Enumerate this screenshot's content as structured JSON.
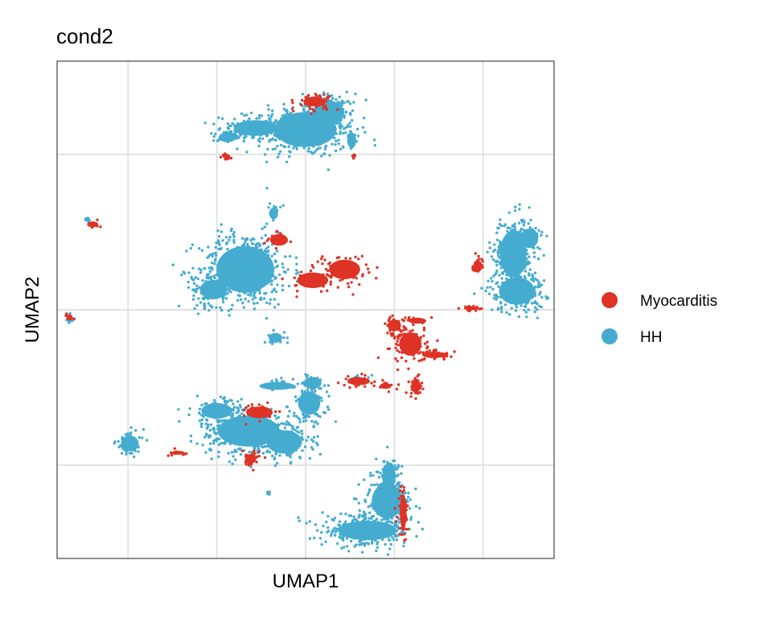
{
  "chart_data": {
    "type": "scatter",
    "title": "cond2",
    "xlabel": "UMAP1",
    "ylabel": "UMAP2",
    "xlim": [
      -15,
      13
    ],
    "ylim": [
      -16,
      16
    ],
    "x_gridlines": [
      -11,
      -6,
      -1,
      4,
      9
    ],
    "y_gridlines": [
      -10,
      0,
      10
    ],
    "tick_labels_shown": false,
    "grid": true,
    "legend_position": "right",
    "series": [
      {
        "name": "Myocarditis",
        "color": "#de3325",
        "clusters": [
          {
            "x": -0.5,
            "y": 13.4,
            "sx": 0.5,
            "sy": 0.25,
            "n": 60
          },
          {
            "x": -5.5,
            "y": 9.9,
            "sx": 0.15,
            "sy": 0.12,
            "n": 14
          },
          {
            "x": 1.7,
            "y": 9.9,
            "sx": 0.08,
            "sy": 0.1,
            "n": 8
          },
          {
            "x": -13.0,
            "y": 5.5,
            "sx": 0.25,
            "sy": 0.15,
            "n": 8
          },
          {
            "x": 1.2,
            "y": 2.6,
            "sx": 0.7,
            "sy": 0.5,
            "n": 90
          },
          {
            "x": -0.6,
            "y": 1.9,
            "sx": 0.7,
            "sy": 0.4,
            "n": 45
          },
          {
            "x": -2.5,
            "y": 4.5,
            "sx": 0.4,
            "sy": 0.3,
            "n": 18
          },
          {
            "x": -14.3,
            "y": -0.5,
            "sx": 0.15,
            "sy": 0.15,
            "n": 8
          },
          {
            "x": 4.9,
            "y": -2.2,
            "sx": 0.5,
            "sy": 0.6,
            "n": 110
          },
          {
            "x": 4.0,
            "y": -1.0,
            "sx": 0.3,
            "sy": 0.3,
            "n": 30
          },
          {
            "x": 6.3,
            "y": -2.9,
            "sx": 0.6,
            "sy": 0.15,
            "n": 40
          },
          {
            "x": 5.2,
            "y": -4.9,
            "sx": 0.2,
            "sy": 0.35,
            "n": 40
          },
          {
            "x": 5.3,
            "y": -0.7,
            "sx": 0.4,
            "sy": 0.15,
            "n": 15
          },
          {
            "x": 8.7,
            "y": 2.8,
            "sx": 0.2,
            "sy": 0.3,
            "n": 20
          },
          {
            "x": 8.3,
            "y": 0.1,
            "sx": 0.3,
            "sy": 0.1,
            "n": 18
          },
          {
            "x": 2.0,
            "y": -4.6,
            "sx": 0.5,
            "sy": 0.2,
            "n": 30
          },
          {
            "x": 3.5,
            "y": -4.9,
            "sx": 0.25,
            "sy": 0.15,
            "n": 12
          },
          {
            "x": -4.1,
            "y": -9.6,
            "sx": 0.25,
            "sy": 0.25,
            "n": 45
          },
          {
            "x": -3.6,
            "y": -6.6,
            "sx": 0.6,
            "sy": 0.3,
            "n": 25
          },
          {
            "x": -8.2,
            "y": -9.2,
            "sx": 0.3,
            "sy": 0.1,
            "n": 12
          },
          {
            "x": 4.5,
            "y": -13.0,
            "sx": 0.15,
            "sy": 0.9,
            "n": 45
          }
        ]
      },
      {
        "name": "HH",
        "color": "#45acd0",
        "clusters": [
          {
            "x": -1.0,
            "y": 11.6,
            "sx": 1.4,
            "sy": 0.9,
            "n": 420
          },
          {
            "x": 0.3,
            "y": 12.7,
            "sx": 0.7,
            "sy": 0.6,
            "n": 130
          },
          {
            "x": -3.8,
            "y": 11.7,
            "sx": 1.0,
            "sy": 0.4,
            "n": 110
          },
          {
            "x": -5.4,
            "y": 11.1,
            "sx": 0.4,
            "sy": 0.25,
            "n": 30
          },
          {
            "x": 1.6,
            "y": 10.9,
            "sx": 0.2,
            "sy": 0.4,
            "n": 15
          },
          {
            "x": -13.3,
            "y": 5.8,
            "sx": 0.15,
            "sy": 0.1,
            "n": 5
          },
          {
            "x": -4.4,
            "y": 2.6,
            "sx": 1.3,
            "sy": 1.2,
            "n": 480
          },
          {
            "x": -6.2,
            "y": 1.3,
            "sx": 0.6,
            "sy": 0.5,
            "n": 120
          },
          {
            "x": -2.8,
            "y": 6.2,
            "sx": 0.2,
            "sy": 0.3,
            "n": 15
          },
          {
            "x": -14.3,
            "y": -0.6,
            "sx": 0.15,
            "sy": 0.15,
            "n": 14
          },
          {
            "x": -2.7,
            "y": -1.8,
            "sx": 0.3,
            "sy": 0.25,
            "n": 25
          },
          {
            "x": 10.7,
            "y": 3.6,
            "sx": 0.6,
            "sy": 1.2,
            "n": 280
          },
          {
            "x": 10.9,
            "y": 1.2,
            "sx": 0.8,
            "sy": 0.7,
            "n": 200
          },
          {
            "x": 11.6,
            "y": 4.6,
            "sx": 0.4,
            "sy": 0.5,
            "n": 60
          },
          {
            "x": -4.2,
            "y": -7.8,
            "sx": 1.4,
            "sy": 0.8,
            "n": 380
          },
          {
            "x": -2.2,
            "y": -8.5,
            "sx": 0.8,
            "sy": 0.6,
            "n": 160
          },
          {
            "x": -6.0,
            "y": -6.5,
            "sx": 0.7,
            "sy": 0.4,
            "n": 90
          },
          {
            "x": -0.8,
            "y": -6.0,
            "sx": 0.5,
            "sy": 0.6,
            "n": 90
          },
          {
            "x": -0.6,
            "y": -4.7,
            "sx": 0.4,
            "sy": 0.3,
            "n": 50
          },
          {
            "x": -2.6,
            "y": -4.9,
            "sx": 0.8,
            "sy": 0.2,
            "n": 25
          },
          {
            "x": -10.9,
            "y": -8.6,
            "sx": 0.4,
            "sy": 0.4,
            "n": 70
          },
          {
            "x": 1.9,
            "y": -4.5,
            "sx": 0.4,
            "sy": 0.15,
            "n": 15
          },
          {
            "x": -3.1,
            "y": -11.8,
            "sx": 0.1,
            "sy": 0.1,
            "n": 4
          },
          {
            "x": 2.5,
            "y": -14.2,
            "sx": 1.3,
            "sy": 0.5,
            "n": 320
          },
          {
            "x": 3.6,
            "y": -12.3,
            "sx": 0.7,
            "sy": 0.9,
            "n": 180
          },
          {
            "x": 3.7,
            "y": -10.7,
            "sx": 0.3,
            "sy": 0.7,
            "n": 70
          }
        ]
      }
    ]
  }
}
